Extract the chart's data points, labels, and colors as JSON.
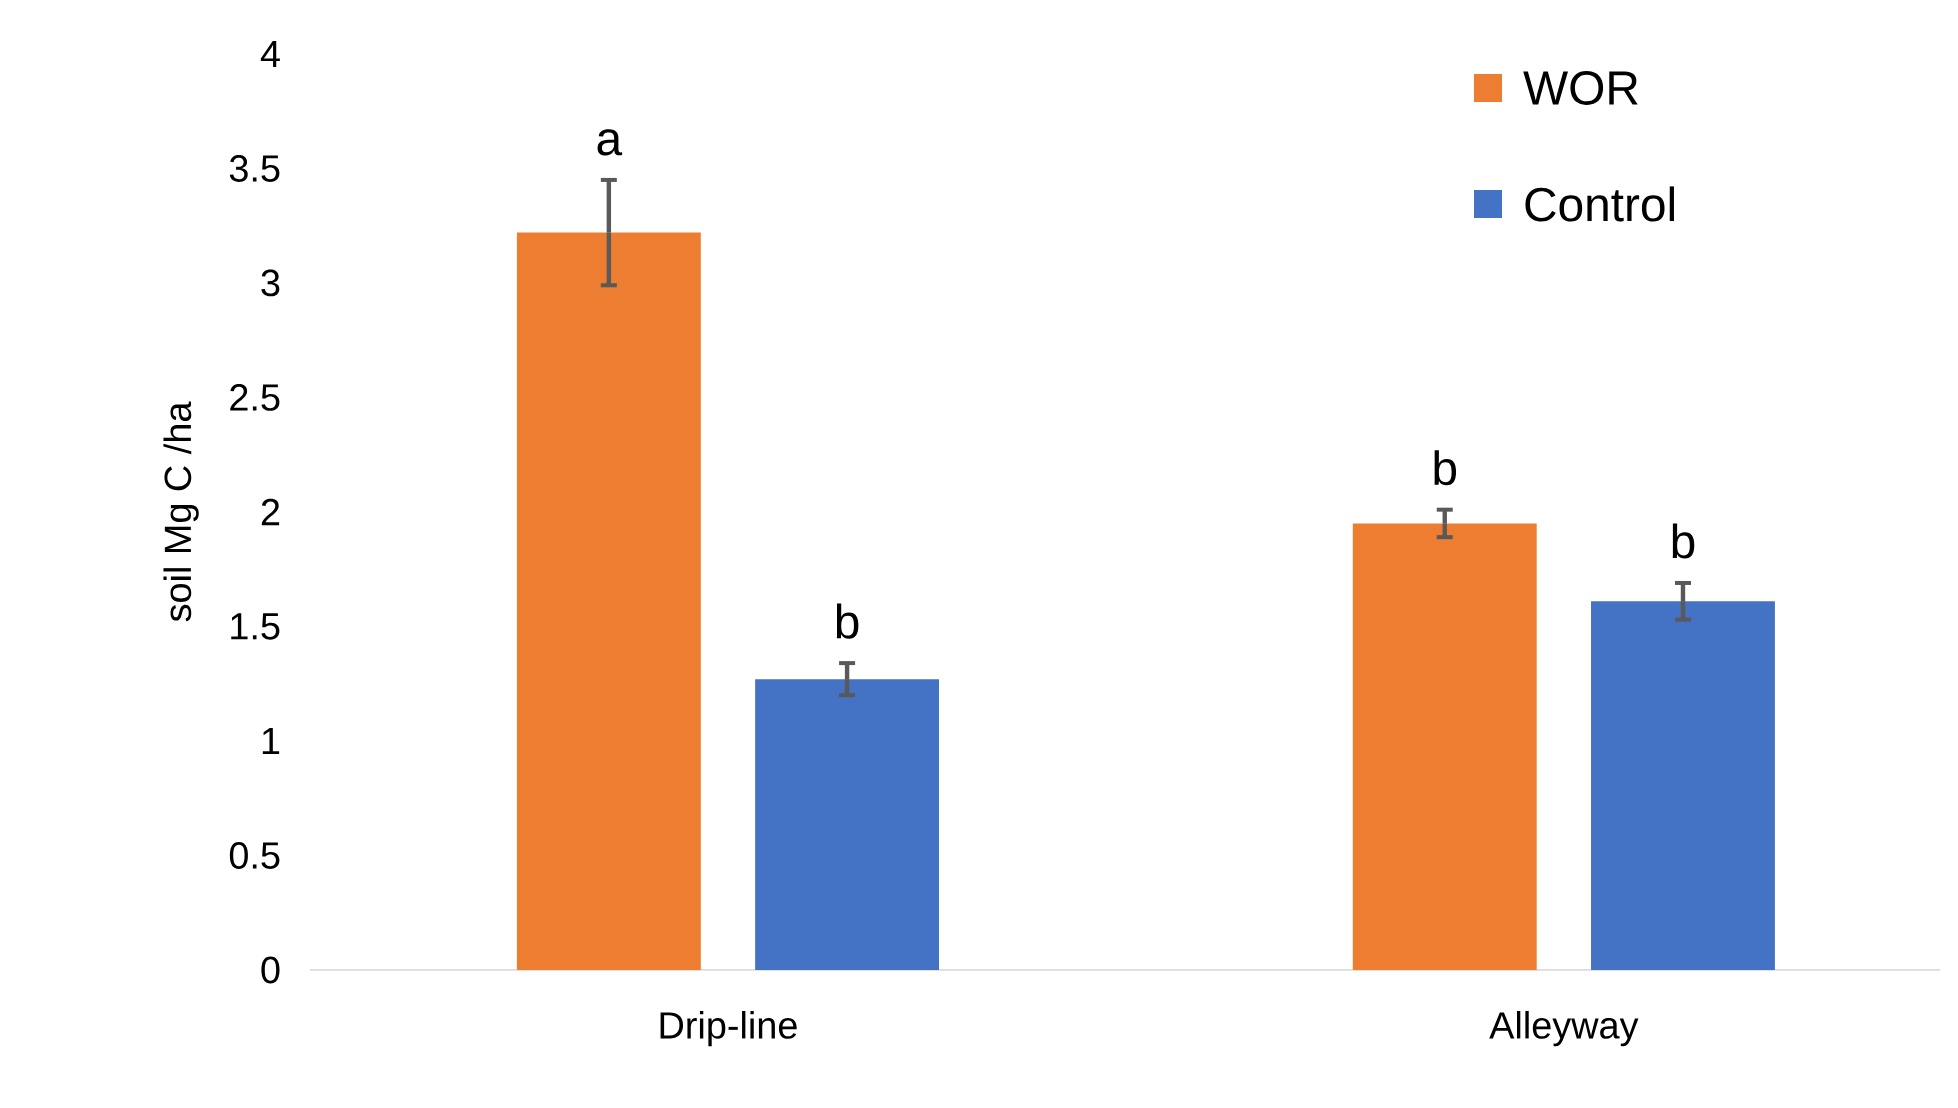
{
  "chart_data": {
    "type": "bar",
    "ylabel": "soil  Mg C /ha",
    "categories": [
      "Drip-line",
      "Alleyway"
    ],
    "series": [
      {
        "name": "WOR",
        "color": "#ed7d31",
        "values": [
          3.22,
          1.95
        ],
        "errors": [
          0.23,
          0.06
        ]
      },
      {
        "name": "Control",
        "color": "#4472c4",
        "values": [
          1.27,
          1.61
        ],
        "errors": [
          0.07,
          0.08
        ]
      }
    ],
    "ylim": [
      0,
      4
    ],
    "yticks": [
      0,
      0.5,
      1,
      1.5,
      2,
      2.5,
      3,
      3.5,
      4
    ],
    "grid": false,
    "legend": "top right",
    "annotations": [
      "a",
      "b",
      "b",
      "b"
    ]
  }
}
